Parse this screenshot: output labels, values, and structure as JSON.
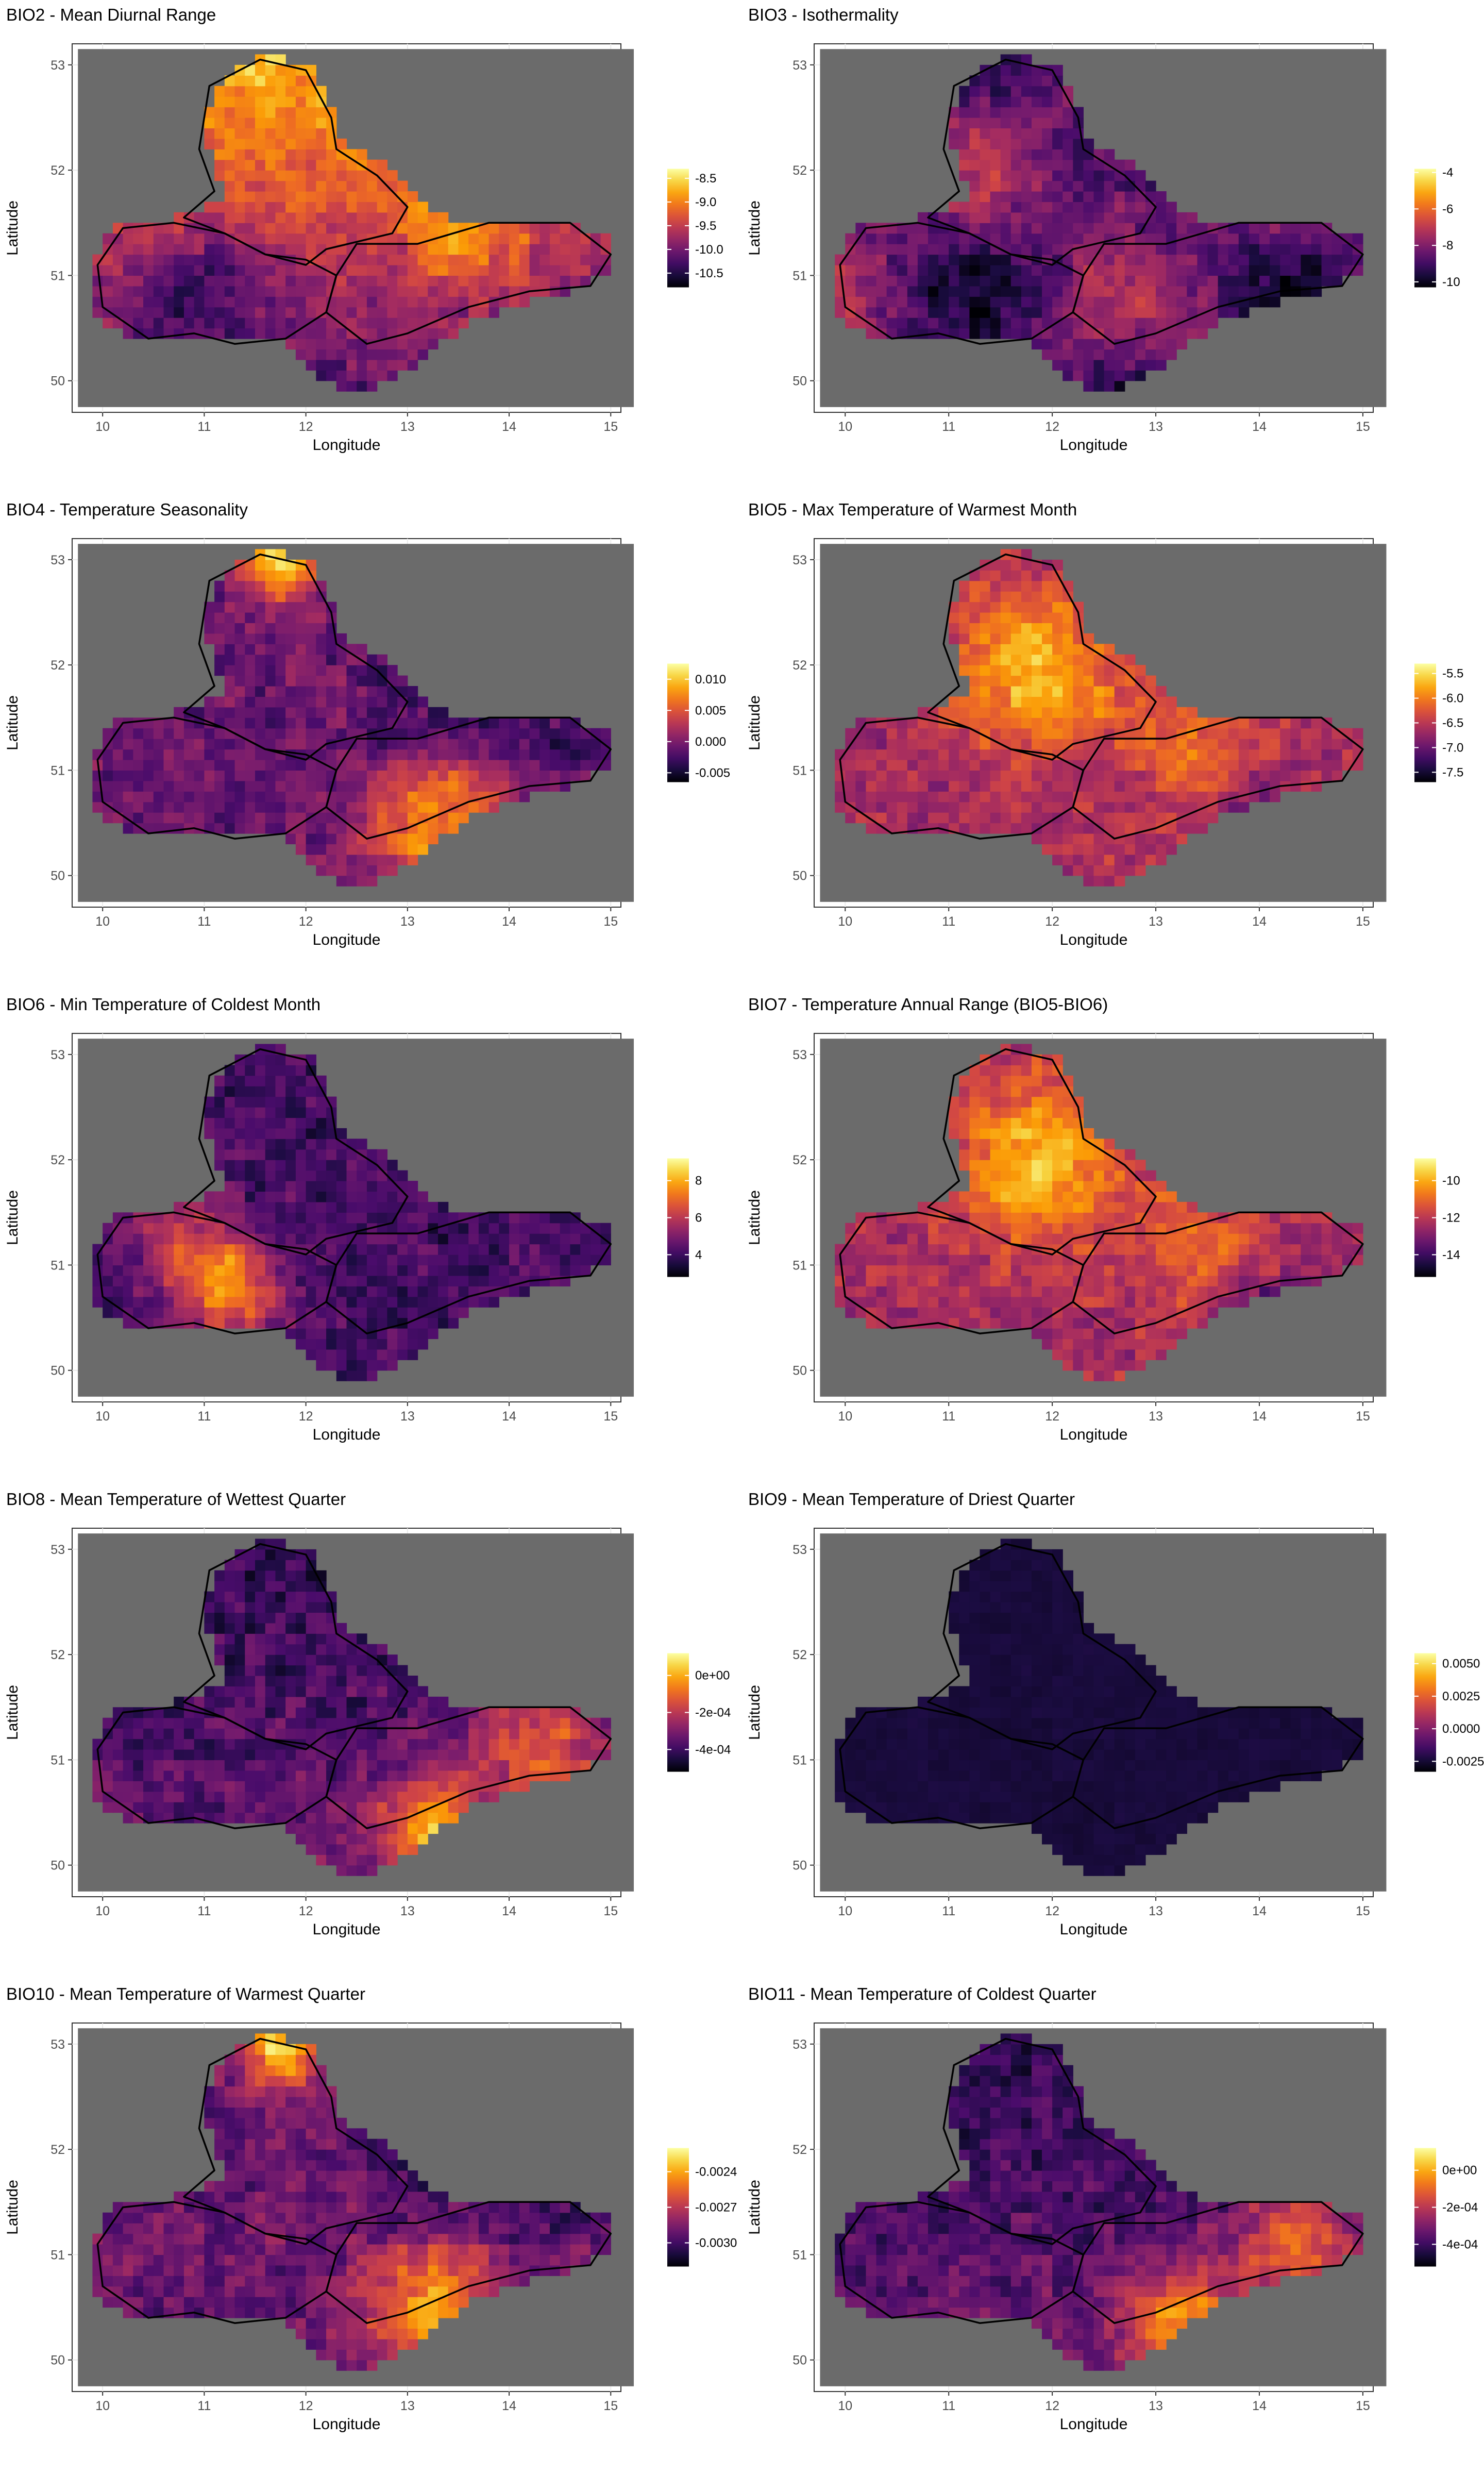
{
  "figure": {
    "axis_defaults": {
      "xlabel": "Longitude",
      "ylabel": "Latitude",
      "x_ticks": [
        "10",
        "11",
        "12",
        "13",
        "14",
        "15"
      ],
      "y_ticks": [
        "50",
        "51",
        "52",
        "53"
      ]
    },
    "colors": {
      "panel_bg": "#ffffff",
      "map_bg": "#6b6b6b",
      "grid": "#ebebeb",
      "outline": "#000000",
      "inferno": [
        "#000004",
        "#1b0c41",
        "#4a0c6b",
        "#781c6d",
        "#a52c60",
        "#cf4446",
        "#ed6925",
        "#fb9b06",
        "#f7d13d",
        "#fcffa4"
      ]
    }
  },
  "chart_data": [
    {
      "type": "heatmap",
      "title": "BIO2 - Mean Diurnal Range",
      "xlabel": "Longitude",
      "ylabel": "Latitude",
      "xlim": [
        9.7,
        15.1
      ],
      "ylim": [
        49.7,
        53.2
      ],
      "x_ticks": [
        10,
        11,
        12,
        13,
        14,
        15
      ],
      "y_ticks": [
        50,
        51,
        52,
        53
      ],
      "legend": {
        "position": "right",
        "ticks": [
          "-8.5",
          "-9.0",
          "-9.5",
          "-10.0",
          "-10.5"
        ],
        "range": [
          -10.8,
          -8.3
        ]
      },
      "pattern": "north-high"
    },
    {
      "type": "heatmap",
      "title": "BIO3 - Isothermality",
      "xlabel": "Longitude",
      "ylabel": "Latitude",
      "xlim": [
        9.7,
        15.1
      ],
      "ylim": [
        49.7,
        53.2
      ],
      "x_ticks": [
        10,
        11,
        12,
        13,
        14,
        15
      ],
      "y_ticks": [
        50,
        51,
        52,
        53
      ],
      "legend": {
        "position": "right",
        "ticks": [
          "-4",
          "-6",
          "-8",
          "-10"
        ],
        "range": [
          -10.3,
          -3.8
        ]
      },
      "pattern": "mostly-dark"
    },
    {
      "type": "heatmap",
      "title": "BIO4 - Temperature Seasonality",
      "xlabel": "Longitude",
      "ylabel": "Latitude",
      "xlim": [
        9.7,
        15.1
      ],
      "ylim": [
        49.7,
        53.2
      ],
      "x_ticks": [
        10,
        11,
        12,
        13,
        14,
        15
      ],
      "y_ticks": [
        50,
        51,
        52,
        53
      ],
      "legend": {
        "position": "right",
        "ticks": [
          "0.010",
          "0.005",
          "0.000",
          "-0.005"
        ],
        "range": [
          -0.0065,
          0.0125
        ]
      },
      "pattern": "north-south-high"
    },
    {
      "type": "heatmap",
      "title": "BIO5 - Max Temperature of Warmest Month",
      "xlabel": "Longitude",
      "ylabel": "Latitude",
      "xlim": [
        9.7,
        15.1
      ],
      "ylim": [
        49.7,
        53.2
      ],
      "x_ticks": [
        10,
        11,
        12,
        13,
        14,
        15
      ],
      "y_ticks": [
        50,
        51,
        52,
        53
      ],
      "legend": {
        "position": "right",
        "ticks": [
          "-5.5",
          "-6.0",
          "-6.5",
          "-7.0",
          "-7.5"
        ],
        "range": [
          -7.7,
          -5.3
        ]
      },
      "pattern": "center-high"
    },
    {
      "type": "heatmap",
      "title": "BIO6 - Min Temperature of Coldest Month",
      "xlabel": "Longitude",
      "ylabel": "Latitude",
      "xlim": [
        9.7,
        15.1
      ],
      "ylim": [
        49.7,
        53.2
      ],
      "x_ticks": [
        10,
        11,
        12,
        13,
        14,
        15
      ],
      "y_ticks": [
        50,
        51,
        52,
        53
      ],
      "legend": {
        "position": "right",
        "ticks": [
          "8",
          "6",
          "4"
        ],
        "range": [
          2.8,
          9.2
        ]
      },
      "pattern": "west-high"
    },
    {
      "type": "heatmap",
      "title": "BIO7 - Temperature Annual Range (BIO5-BIO6)",
      "xlabel": "Longitude",
      "ylabel": "Latitude",
      "xlim": [
        9.7,
        15.1
      ],
      "ylim": [
        49.7,
        53.2
      ],
      "x_ticks": [
        10,
        11,
        12,
        13,
        14,
        15
      ],
      "y_ticks": [
        50,
        51,
        52,
        53
      ],
      "legend": {
        "position": "right",
        "ticks": [
          "-10",
          "-12",
          "-14"
        ],
        "range": [
          -15.2,
          -8.8
        ]
      },
      "pattern": "center-high"
    },
    {
      "type": "heatmap",
      "title": "BIO8 - Mean Temperature of Wettest Quarter",
      "xlabel": "Longitude",
      "ylabel": "Latitude",
      "xlim": [
        9.7,
        15.1
      ],
      "ylim": [
        49.7,
        53.2
      ],
      "x_ticks": [
        10,
        11,
        12,
        13,
        14,
        15
      ],
      "y_ticks": [
        50,
        51,
        52,
        53
      ],
      "legend": {
        "position": "right",
        "ticks": [
          "0e+00",
          "-2e-04",
          "-4e-04"
        ],
        "range": [
          -0.00052,
          0.00012
        ]
      },
      "pattern": "southeast-high"
    },
    {
      "type": "heatmap",
      "title": "BIO9 - Mean Temperature of Driest Quarter",
      "xlabel": "Longitude",
      "ylabel": "Latitude",
      "xlim": [
        9.7,
        15.1
      ],
      "ylim": [
        49.7,
        53.2
      ],
      "x_ticks": [
        10,
        11,
        12,
        13,
        14,
        15
      ],
      "y_ticks": [
        50,
        51,
        52,
        53
      ],
      "legend": {
        "position": "right",
        "ticks": [
          "0.0050",
          "0.0025",
          "0.0000",
          "-0.0025"
        ],
        "range": [
          -0.0033,
          0.0058
        ]
      },
      "pattern": "uniform-dark"
    },
    {
      "type": "heatmap",
      "title": "BIO10 - Mean Temperature of Warmest Quarter",
      "xlabel": "Longitude",
      "ylabel": "Latitude",
      "xlim": [
        9.7,
        15.1
      ],
      "ylim": [
        49.7,
        53.2
      ],
      "x_ticks": [
        10,
        11,
        12,
        13,
        14,
        15
      ],
      "y_ticks": [
        50,
        51,
        52,
        53
      ],
      "legend": {
        "position": "right",
        "ticks": [
          "-0.0024",
          "-0.0027",
          "-0.0030"
        ],
        "range": [
          -0.0032,
          -0.0022
        ]
      },
      "pattern": "north-south-high"
    },
    {
      "type": "heatmap",
      "title": "BIO11 - Mean Temperature of Coldest Quarter",
      "xlabel": "Longitude",
      "ylabel": "Latitude",
      "xlim": [
        9.7,
        15.1
      ],
      "ylim": [
        49.7,
        53.2
      ],
      "x_ticks": [
        10,
        11,
        12,
        13,
        14,
        15
      ],
      "y_ticks": [
        50,
        51,
        52,
        53
      ],
      "legend": {
        "position": "right",
        "ticks": [
          "0e+00",
          "-2e-04",
          "-4e-04"
        ],
        "range": [
          -0.00052,
          0.00012
        ]
      },
      "pattern": "southeast-high"
    }
  ]
}
